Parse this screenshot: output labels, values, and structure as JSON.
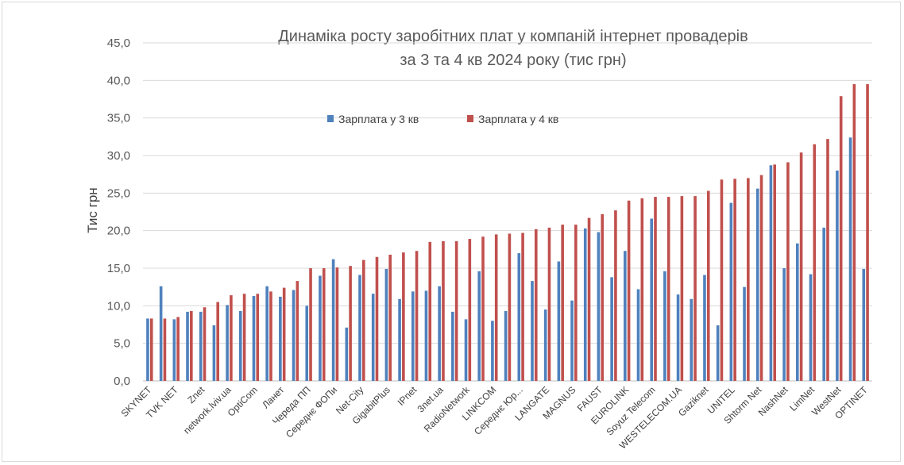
{
  "chart_data": {
    "type": "bar",
    "title": [
      "Динаміка росту заробітних плат у компаній інтернет провадерів",
      "за 3 та 4 кв 2024 року (тис грн)"
    ],
    "ylabel": "Тис грн",
    "xlabel": "",
    "ylim": [
      0,
      45
    ],
    "yticks": [
      "0,0",
      "5,0",
      "10,0",
      "15,0",
      "20,0",
      "25,0",
      "30,0",
      "35,0",
      "40,0",
      "45,0"
    ],
    "grid": true,
    "legend_position": "top-center",
    "categories": [
      "SKYNET",
      "",
      "TVK NET",
      "",
      "Znet",
      "",
      "network.lviv.ua",
      "",
      "OptiCom",
      "",
      "Ланет",
      "",
      "Череда ПП",
      "",
      "Середнє ФОПи",
      "",
      "Net-City",
      "",
      "GigabitPlus",
      "",
      "IPnet",
      "",
      "3net.ua",
      "",
      "RadioNetwork",
      "",
      "LINKCOM",
      "",
      "Середнє Юр...",
      "",
      "LANGATE",
      "",
      "MAGNUS",
      "",
      "FAUST",
      "",
      "EUROLINK",
      "",
      "Soyuz Telecom",
      "",
      "WESTELECOM.UA",
      "",
      "Gaziknet",
      "",
      "UNITEL",
      "",
      "Shtorm Net",
      "",
      "NashNet",
      "",
      "LimNet",
      "",
      "WestNet",
      "",
      "OPTINET"
    ],
    "series": [
      {
        "name": "Зарплата у 3 кв",
        "color": "#4f81bd",
        "values": [
          8.3,
          12.6,
          8.2,
          9.2,
          9.2,
          7.4,
          10.1,
          9.3,
          11.3,
          12.6,
          11.2,
          12.1,
          10.0,
          14.0,
          16.2,
          7.1,
          14.1,
          11.6,
          14.9,
          10.9,
          11.9,
          12.0,
          12.6,
          9.2,
          8.2,
          14.6,
          8.0,
          9.3,
          17.0,
          13.3,
          9.5,
          15.9,
          10.7,
          20.3,
          19.8,
          13.8,
          17.3,
          12.2,
          21.6,
          14.6,
          11.5,
          10.9,
          14.1,
          7.4,
          23.7,
          12.5,
          25.6,
          28.7,
          15.0,
          18.3,
          14.2,
          20.4,
          28.0,
          32.4,
          14.9
        ]
      },
      {
        "name": "Зарплата у 4 кв",
        "color": "#c0504d",
        "values": [
          8.3,
          8.3,
          8.5,
          9.3,
          9.8,
          10.5,
          11.4,
          11.6,
          11.6,
          11.9,
          12.4,
          13.3,
          15.0,
          15.0,
          15.1,
          15.3,
          16.1,
          16.5,
          16.8,
          17.1,
          17.3,
          18.5,
          18.6,
          18.6,
          18.9,
          19.2,
          19.5,
          19.6,
          19.7,
          20.2,
          20.4,
          20.8,
          20.8,
          21.7,
          22.2,
          22.7,
          24.0,
          24.3,
          24.5,
          24.5,
          24.6,
          24.6,
          25.3,
          26.8,
          26.9,
          27.0,
          27.4,
          28.8,
          29.1,
          30.4,
          31.5,
          32.2,
          37.9,
          39.5,
          39.5
        ]
      }
    ]
  }
}
